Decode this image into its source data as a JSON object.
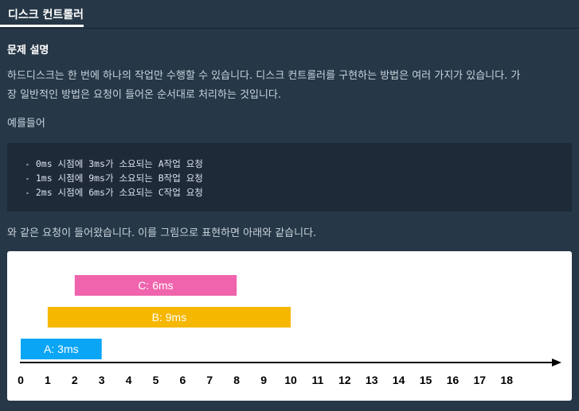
{
  "tab": {
    "label": "디스크 컨트롤러"
  },
  "problem": {
    "heading": "문제 설명",
    "intro_line1": "하드디스크는 한 번에 하나의 작업만 수행할 수 있습니다. 디스크 컨트롤러를 구현하는 방법은 여러 가지가 있습니다. 가",
    "intro_line2": "장 일반적인 방법은 요청이 들어온 순서대로 처리하는 것입니다.",
    "example_label": "예를들어",
    "code_lines": [
      "- 0ms 시점에 3ms가 소요되는 A작업 요청",
      "- 1ms 시점에 9ms가 소요되는 B작업 요청",
      "- 2ms 시점에 6ms가 소요되는 C작업 요청"
    ],
    "figure_caption": "와 같은 요청이 들어왔습니다. 이를 그림으로 표현하면 아래와 같습니다."
  },
  "chart_data": {
    "type": "bar",
    "bars": [
      {
        "label": "A: 3ms",
        "start": 0,
        "end": 3,
        "color": "#0aa5f5"
      },
      {
        "label": "B: 9ms",
        "start": 1,
        "end": 10,
        "color": "#f5b700"
      },
      {
        "label": "C: 6ms",
        "start": 2,
        "end": 8,
        "color": "#ef64ac"
      }
    ],
    "ticks": [
      "0",
      "1",
      "2",
      "3",
      "4",
      "5",
      "6",
      "7",
      "8",
      "9",
      "10",
      "11",
      "12",
      "13",
      "14",
      "15",
      "16",
      "17",
      "18"
    ],
    "xlim": [
      0,
      18
    ]
  }
}
